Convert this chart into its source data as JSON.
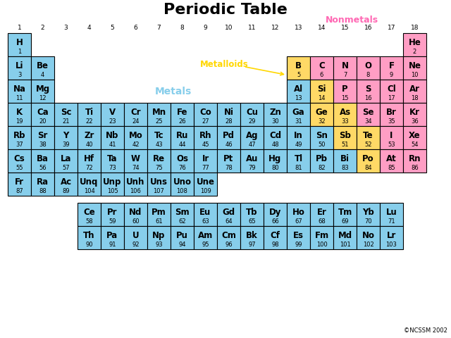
{
  "title": "Periodic Table",
  "title_fontsize": 16,
  "background_color": "#ffffff",
  "color_metal": "#87CEEB",
  "color_metalloid": "#FFD966",
  "color_nonmetal": "#FF9EC4",
  "label_metals": "Metals",
  "label_metalloids": "Metalloids",
  "label_nonmetals": "Nonmetals",
  "label_metals_color": "#87CEEB",
  "label_metalloids_color": "#FFD700",
  "label_nonmetals_color": "#FF69B4",
  "copyright": "©NCSSM 2002",
  "elements": [
    {
      "sym": "H",
      "num": 1,
      "row": 1,
      "col": 1,
      "type": "metal"
    },
    {
      "sym": "He",
      "num": 2,
      "row": 1,
      "col": 18,
      "type": "nonmetal"
    },
    {
      "sym": "Li",
      "num": 3,
      "row": 2,
      "col": 1,
      "type": "metal"
    },
    {
      "sym": "Be",
      "num": 4,
      "row": 2,
      "col": 2,
      "type": "metal"
    },
    {
      "sym": "B",
      "num": 5,
      "row": 2,
      "col": 13,
      "type": "metalloid"
    },
    {
      "sym": "C",
      "num": 6,
      "row": 2,
      "col": 14,
      "type": "nonmetal"
    },
    {
      "sym": "N",
      "num": 7,
      "row": 2,
      "col": 15,
      "type": "nonmetal"
    },
    {
      "sym": "O",
      "num": 8,
      "row": 2,
      "col": 16,
      "type": "nonmetal"
    },
    {
      "sym": "F",
      "num": 9,
      "row": 2,
      "col": 17,
      "type": "nonmetal"
    },
    {
      "sym": "Ne",
      "num": 10,
      "row": 2,
      "col": 18,
      "type": "nonmetal"
    },
    {
      "sym": "Na",
      "num": 11,
      "row": 3,
      "col": 1,
      "type": "metal"
    },
    {
      "sym": "Mg",
      "num": 12,
      "row": 3,
      "col": 2,
      "type": "metal"
    },
    {
      "sym": "Al",
      "num": 13,
      "row": 3,
      "col": 13,
      "type": "metal"
    },
    {
      "sym": "Si",
      "num": 14,
      "row": 3,
      "col": 14,
      "type": "metalloid"
    },
    {
      "sym": "P",
      "num": 15,
      "row": 3,
      "col": 15,
      "type": "nonmetal"
    },
    {
      "sym": "S",
      "num": 16,
      "row": 3,
      "col": 16,
      "type": "nonmetal"
    },
    {
      "sym": "Cl",
      "num": 17,
      "row": 3,
      "col": 17,
      "type": "nonmetal"
    },
    {
      "sym": "Ar",
      "num": 18,
      "row": 3,
      "col": 18,
      "type": "nonmetal"
    },
    {
      "sym": "K",
      "num": 19,
      "row": 4,
      "col": 1,
      "type": "metal"
    },
    {
      "sym": "Ca",
      "num": 20,
      "row": 4,
      "col": 2,
      "type": "metal"
    },
    {
      "sym": "Sc",
      "num": 21,
      "row": 4,
      "col": 3,
      "type": "metal"
    },
    {
      "sym": "Ti",
      "num": 22,
      "row": 4,
      "col": 4,
      "type": "metal"
    },
    {
      "sym": "V",
      "num": 23,
      "row": 4,
      "col": 5,
      "type": "metal"
    },
    {
      "sym": "Cr",
      "num": 24,
      "row": 4,
      "col": 6,
      "type": "metal"
    },
    {
      "sym": "Mn",
      "num": 25,
      "row": 4,
      "col": 7,
      "type": "metal"
    },
    {
      "sym": "Fe",
      "num": 26,
      "row": 4,
      "col": 8,
      "type": "metal"
    },
    {
      "sym": "Co",
      "num": 27,
      "row": 4,
      "col": 9,
      "type": "metal"
    },
    {
      "sym": "Ni",
      "num": 28,
      "row": 4,
      "col": 10,
      "type": "metal"
    },
    {
      "sym": "Cu",
      "num": 29,
      "row": 4,
      "col": 11,
      "type": "metal"
    },
    {
      "sym": "Zn",
      "num": 30,
      "row": 4,
      "col": 12,
      "type": "metal"
    },
    {
      "sym": "Ga",
      "num": 31,
      "row": 4,
      "col": 13,
      "type": "metal"
    },
    {
      "sym": "Ge",
      "num": 32,
      "row": 4,
      "col": 14,
      "type": "metalloid"
    },
    {
      "sym": "As",
      "num": 33,
      "row": 4,
      "col": 15,
      "type": "metalloid"
    },
    {
      "sym": "Se",
      "num": 34,
      "row": 4,
      "col": 16,
      "type": "nonmetal"
    },
    {
      "sym": "Br",
      "num": 35,
      "row": 4,
      "col": 17,
      "type": "nonmetal"
    },
    {
      "sym": "Kr",
      "num": 36,
      "row": 4,
      "col": 18,
      "type": "nonmetal"
    },
    {
      "sym": "Rb",
      "num": 37,
      "row": 5,
      "col": 1,
      "type": "metal"
    },
    {
      "sym": "Sr",
      "num": 38,
      "row": 5,
      "col": 2,
      "type": "metal"
    },
    {
      "sym": "Y",
      "num": 39,
      "row": 5,
      "col": 3,
      "type": "metal"
    },
    {
      "sym": "Zr",
      "num": 40,
      "row": 5,
      "col": 4,
      "type": "metal"
    },
    {
      "sym": "Nb",
      "num": 41,
      "row": 5,
      "col": 5,
      "type": "metal"
    },
    {
      "sym": "Mo",
      "num": 42,
      "row": 5,
      "col": 6,
      "type": "metal"
    },
    {
      "sym": "Tc",
      "num": 43,
      "row": 5,
      "col": 7,
      "type": "metal"
    },
    {
      "sym": "Ru",
      "num": 44,
      "row": 5,
      "col": 8,
      "type": "metal"
    },
    {
      "sym": "Rh",
      "num": 45,
      "row": 5,
      "col": 9,
      "type": "metal"
    },
    {
      "sym": "Pd",
      "num": 46,
      "row": 5,
      "col": 10,
      "type": "metal"
    },
    {
      "sym": "Ag",
      "num": 47,
      "row": 5,
      "col": 11,
      "type": "metal"
    },
    {
      "sym": "Cd",
      "num": 48,
      "row": 5,
      "col": 12,
      "type": "metal"
    },
    {
      "sym": "In",
      "num": 49,
      "row": 5,
      "col": 13,
      "type": "metal"
    },
    {
      "sym": "Sn",
      "num": 50,
      "row": 5,
      "col": 14,
      "type": "metal"
    },
    {
      "sym": "Sb",
      "num": 51,
      "row": 5,
      "col": 15,
      "type": "metalloid"
    },
    {
      "sym": "Te",
      "num": 52,
      "row": 5,
      "col": 16,
      "type": "metalloid"
    },
    {
      "sym": "I",
      "num": 53,
      "row": 5,
      "col": 17,
      "type": "nonmetal"
    },
    {
      "sym": "Xe",
      "num": 54,
      "row": 5,
      "col": 18,
      "type": "nonmetal"
    },
    {
      "sym": "Cs",
      "num": 55,
      "row": 6,
      "col": 1,
      "type": "metal"
    },
    {
      "sym": "Ba",
      "num": 56,
      "row": 6,
      "col": 2,
      "type": "metal"
    },
    {
      "sym": "La",
      "num": 57,
      "row": 6,
      "col": 3,
      "type": "metal"
    },
    {
      "sym": "Hf",
      "num": 72,
      "row": 6,
      "col": 4,
      "type": "metal"
    },
    {
      "sym": "Ta",
      "num": 73,
      "row": 6,
      "col": 5,
      "type": "metal"
    },
    {
      "sym": "W",
      "num": 74,
      "row": 6,
      "col": 6,
      "type": "metal"
    },
    {
      "sym": "Re",
      "num": 75,
      "row": 6,
      "col": 7,
      "type": "metal"
    },
    {
      "sym": "Os",
      "num": 76,
      "row": 6,
      "col": 8,
      "type": "metal"
    },
    {
      "sym": "Ir",
      "num": 77,
      "row": 6,
      "col": 9,
      "type": "metal"
    },
    {
      "sym": "Pt",
      "num": 78,
      "row": 6,
      "col": 10,
      "type": "metal"
    },
    {
      "sym": "Au",
      "num": 79,
      "row": 6,
      "col": 11,
      "type": "metal"
    },
    {
      "sym": "Hg",
      "num": 80,
      "row": 6,
      "col": 12,
      "type": "metal"
    },
    {
      "sym": "Tl",
      "num": 81,
      "row": 6,
      "col": 13,
      "type": "metal"
    },
    {
      "sym": "Pb",
      "num": 82,
      "row": 6,
      "col": 14,
      "type": "metal"
    },
    {
      "sym": "Bi",
      "num": 83,
      "row": 6,
      "col": 15,
      "type": "metal"
    },
    {
      "sym": "Po",
      "num": 84,
      "row": 6,
      "col": 16,
      "type": "metalloid"
    },
    {
      "sym": "At",
      "num": 85,
      "row": 6,
      "col": 17,
      "type": "nonmetal"
    },
    {
      "sym": "Rn",
      "num": 86,
      "row": 6,
      "col": 18,
      "type": "nonmetal"
    },
    {
      "sym": "Fr",
      "num": 87,
      "row": 7,
      "col": 1,
      "type": "metal"
    },
    {
      "sym": "Ra",
      "num": 88,
      "row": 7,
      "col": 2,
      "type": "metal"
    },
    {
      "sym": "Ac",
      "num": 89,
      "row": 7,
      "col": 3,
      "type": "metal"
    },
    {
      "sym": "Unq",
      "num": 104,
      "row": 7,
      "col": 4,
      "type": "metal"
    },
    {
      "sym": "Unp",
      "num": 105,
      "row": 7,
      "col": 5,
      "type": "metal"
    },
    {
      "sym": "Unh",
      "num": 106,
      "row": 7,
      "col": 6,
      "type": "metal"
    },
    {
      "sym": "Uns",
      "num": 107,
      "row": 7,
      "col": 7,
      "type": "metal"
    },
    {
      "sym": "Uno",
      "num": 108,
      "row": 7,
      "col": 8,
      "type": "metal"
    },
    {
      "sym": "Une",
      "num": 109,
      "row": 7,
      "col": 9,
      "type": "metal"
    },
    {
      "sym": "Ce",
      "num": 58,
      "row": 9,
      "col": 4,
      "type": "metal"
    },
    {
      "sym": "Pr",
      "num": 59,
      "row": 9,
      "col": 5,
      "type": "metal"
    },
    {
      "sym": "Nd",
      "num": 60,
      "row": 9,
      "col": 6,
      "type": "metal"
    },
    {
      "sym": "Pm",
      "num": 61,
      "row": 9,
      "col": 7,
      "type": "metal"
    },
    {
      "sym": "Sm",
      "num": 62,
      "row": 9,
      "col": 8,
      "type": "metal"
    },
    {
      "sym": "Eu",
      "num": 63,
      "row": 9,
      "col": 9,
      "type": "metal"
    },
    {
      "sym": "Gd",
      "num": 64,
      "row": 9,
      "col": 10,
      "type": "metal"
    },
    {
      "sym": "Tb",
      "num": 65,
      "row": 9,
      "col": 11,
      "type": "metal"
    },
    {
      "sym": "Dy",
      "num": 66,
      "row": 9,
      "col": 12,
      "type": "metal"
    },
    {
      "sym": "Ho",
      "num": 67,
      "row": 9,
      "col": 13,
      "type": "metal"
    },
    {
      "sym": "Er",
      "num": 68,
      "row": 9,
      "col": 14,
      "type": "metal"
    },
    {
      "sym": "Tm",
      "num": 69,
      "row": 9,
      "col": 15,
      "type": "metal"
    },
    {
      "sym": "Yb",
      "num": 70,
      "row": 9,
      "col": 16,
      "type": "metal"
    },
    {
      "sym": "Lu",
      "num": 71,
      "row": 9,
      "col": 17,
      "type": "metal"
    },
    {
      "sym": "Th",
      "num": 90,
      "row": 10,
      "col": 4,
      "type": "metal"
    },
    {
      "sym": "Pa",
      "num": 91,
      "row": 10,
      "col": 5,
      "type": "metal"
    },
    {
      "sym": "U",
      "num": 92,
      "row": 10,
      "col": 6,
      "type": "metal"
    },
    {
      "sym": "Np",
      "num": 93,
      "row": 10,
      "col": 7,
      "type": "metal"
    },
    {
      "sym": "Pu",
      "num": 94,
      "row": 10,
      "col": 8,
      "type": "metal"
    },
    {
      "sym": "Am",
      "num": 95,
      "row": 10,
      "col": 9,
      "type": "metal"
    },
    {
      "sym": "Cm",
      "num": 96,
      "row": 10,
      "col": 10,
      "type": "metal"
    },
    {
      "sym": "Bk",
      "num": 97,
      "row": 10,
      "col": 11,
      "type": "metal"
    },
    {
      "sym": "Cf",
      "num": 98,
      "row": 10,
      "col": 12,
      "type": "metal"
    },
    {
      "sym": "Es",
      "num": 99,
      "row": 10,
      "col": 13,
      "type": "metal"
    },
    {
      "sym": "Fm",
      "num": 100,
      "row": 10,
      "col": 14,
      "type": "metal"
    },
    {
      "sym": "Md",
      "num": 101,
      "row": 10,
      "col": 15,
      "type": "metal"
    },
    {
      "sym": "No",
      "num": 102,
      "row": 10,
      "col": 16,
      "type": "metal"
    },
    {
      "sym": "Lr",
      "num": 103,
      "row": 10,
      "col": 17,
      "type": "metal"
    }
  ]
}
